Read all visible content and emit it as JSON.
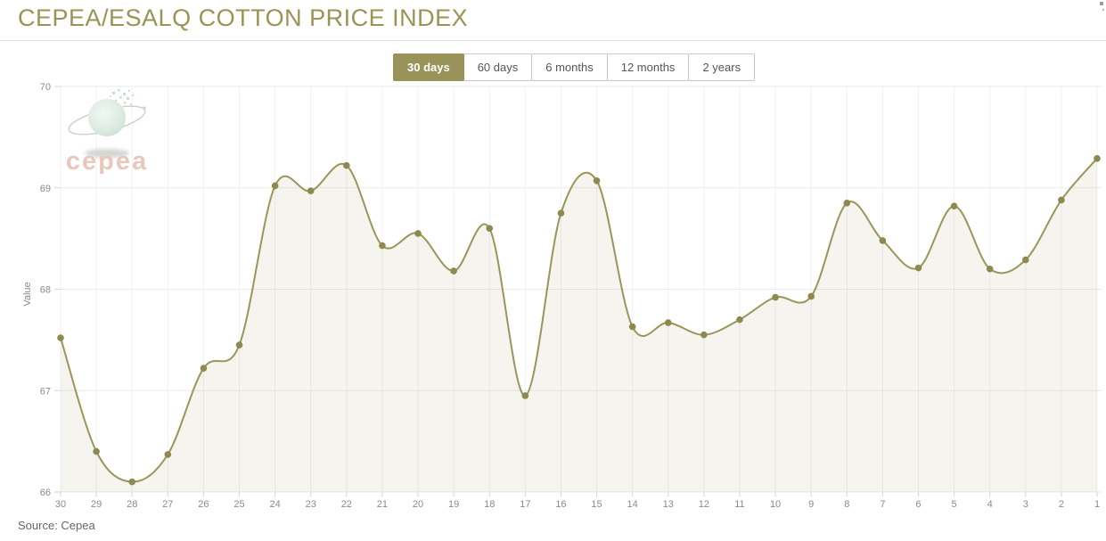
{
  "page": {
    "title": "CEPEA/ESALQ COTTON PRICE INDEX",
    "source_label": "Source: Cepea"
  },
  "tabs": [
    {
      "id": "30-days",
      "label": "30 days",
      "active": true
    },
    {
      "id": "60-days",
      "label": "60 days",
      "active": false
    },
    {
      "id": "6-months",
      "label": "6 months",
      "active": false
    },
    {
      "id": "12-months",
      "label": "12 months",
      "active": false
    },
    {
      "id": "2-years",
      "label": "2 years",
      "active": false
    }
  ],
  "logo": {
    "text": "cepea"
  },
  "colors": {
    "accent": "#99935A",
    "title": "#9A9454",
    "divider": "#E2E2E2",
    "tab_border": "#C9C9C9",
    "tab_text": "#555555",
    "line": "#9A9659",
    "marker": "#8D8950",
    "area_fill": "rgba(154,150,89,0.10)",
    "grid_horizontal": "#E9E9E9",
    "grid_vertical": "#F1F1F1",
    "tick": "#D6D6D6",
    "axis_text": "#8A8A8A",
    "logo_globe_edge": "#CFE2D8",
    "logo_globe_center": "#F2F8F4",
    "logo_orbit": "#C9D2C6",
    "logo_text": "#E9C7BC",
    "logo_shadow": "#AEB4AE"
  },
  "chart_data": {
    "type": "line",
    "title": "CEPEA/ESALQ COTTON PRICE INDEX",
    "xlabel": "",
    "ylabel": "Value",
    "categories": [
      "30",
      "29",
      "28",
      "27",
      "26",
      "25",
      "24",
      "23",
      "22",
      "21",
      "20",
      "19",
      "18",
      "17",
      "16",
      "15",
      "14",
      "13",
      "12",
      "11",
      "10",
      "9",
      "8",
      "7",
      "6",
      "5",
      "4",
      "3",
      "2",
      "1"
    ],
    "values": [
      67.52,
      66.4,
      66.1,
      66.37,
      67.22,
      67.45,
      69.02,
      68.97,
      69.22,
      68.43,
      68.55,
      68.18,
      68.6,
      66.95,
      68.75,
      69.07,
      67.63,
      67.67,
      67.55,
      67.7,
      67.92,
      67.93,
      68.85,
      68.48,
      68.21,
      68.82,
      68.2,
      68.29,
      68.88,
      69.29
    ],
    "ylim": [
      66,
      70
    ],
    "yticks": [
      66,
      67,
      68,
      69,
      70
    ],
    "grid": true,
    "markers": true,
    "legend": "none"
  }
}
